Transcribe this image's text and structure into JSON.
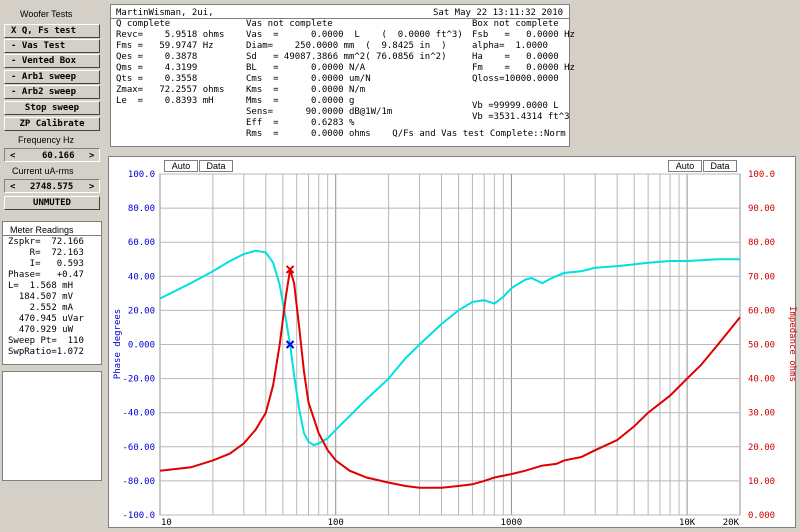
{
  "sidebar": {
    "title": "Woofer Tests",
    "buttons": [
      {
        "id": "qfs",
        "label": "X Q, Fs test"
      },
      {
        "id": "vas",
        "label": "- Vas Test"
      },
      {
        "id": "vented",
        "label": "- Vented Box"
      },
      {
        "id": "arb1",
        "label": "- Arb1 sweep"
      },
      {
        "id": "arb2",
        "label": "- Arb2 sweep"
      },
      {
        "id": "stop",
        "label": "Stop sweep"
      },
      {
        "id": "zp",
        "label": "ZP Calibrate"
      }
    ],
    "freq_label": "Frequency Hz",
    "freq_left": "<",
    "freq_value": "60.166",
    "freq_right": ">",
    "current_label": "Current uA-rms",
    "current_left": "<",
    "current_value": "2748.575",
    "current_right": ">",
    "mute_label": "UNMUTED"
  },
  "meter": {
    "title": "Meter Readings",
    "lines": [
      "Zspkr=  72.166",
      "    R=  72.163",
      "    I=   0.593",
      "Phase=   +0.47",
      "L=  1.568 mH",
      "  184.507 mV",
      "    2.552 mA",
      "  470.945 uVar",
      "  470.929 uW",
      "Sweep Pt=  110",
      "SwpRatio=1.072"
    ]
  },
  "info": {
    "col1": [
      "Q complete",
      "Revc=    5.9518 ohms",
      "Fms =   59.9747 Hz",
      "Qes =    0.3878",
      "Qms =    4.3199",
      "Qts =    0.3558",
      "Zmax=   72.2557 ohms",
      "Le  =    0.8393 mH"
    ],
    "col2_header": "MartinWisman, 2ui,",
    "col2": [
      "Vas not complete",
      "Vas  =      0.0000  L    (  0.0000 ft^3)",
      "Diam=    250.0000 mm  (  9.8425 in  )",
      "Sd   = 49087.3866 mm^2( 76.0856 in^2)",
      "BL   =      0.0000 N/A",
      "Cms  =      0.0000 um/N",
      "Kms  =      0.0000 N/m",
      "Mms  =      0.0000 g",
      "Sens=      90.0000 dB@1W/1m",
      "Eff  =      0.6283 %",
      "Rms  =      0.0000 ohms    Q/Fs and Vas test Complete::Norm"
    ],
    "timestamp": "Sat May 22 13:11:32 2010",
    "col3": [
      "Box not complete",
      "Fsb   =   0.0000 Hz",
      "alpha=  1.0000",
      "Ha    =   0.0000",
      "Fm    =   0.0000 Hz",
      "Qloss=10000.0000"
    ],
    "col3_b": [
      "Vb =99999.0000 L",
      "Vb =3531.4314 ft^3"
    ]
  },
  "chart_controls": {
    "left_auto": "Auto",
    "left_data": "Data",
    "right_auto": "Auto",
    "right_data": "Data"
  },
  "chart_data": {
    "type": "line",
    "xscale": "log",
    "xlim": [
      10,
      20000
    ],
    "x_ticks": [
      "10",
      "100",
      "1000",
      "10K",
      "20K"
    ],
    "ylabel_left": "Phase degrees",
    "ylabel_right": "Impedance ohms",
    "ylim_left": [
      -100,
      100
    ],
    "ylim_right": [
      0,
      100
    ],
    "y_ticks_left": [
      "100.0",
      "80.00",
      "60.00",
      "40.00",
      "20.00",
      "0.000",
      "-20.00",
      "-40.00",
      "-60.00",
      "-80.00",
      "-100.0"
    ],
    "y_ticks_right": [
      "100.0",
      "90.00",
      "80.00",
      "70.00",
      "60.00",
      "50.00",
      "40.00",
      "30.00",
      "20.00",
      "10.00",
      "0.000"
    ],
    "grid": true,
    "series": [
      {
        "axis": "left",
        "color": "#00e0e0",
        "points": [
          [
            10,
            27
          ],
          [
            12,
            31
          ],
          [
            15,
            36
          ],
          [
            20,
            43
          ],
          [
            25,
            49
          ],
          [
            30,
            53
          ],
          [
            35,
            55
          ],
          [
            40,
            54
          ],
          [
            44,
            48
          ],
          [
            48,
            35
          ],
          [
            52,
            15
          ],
          [
            55,
            0
          ],
          [
            58,
            -18
          ],
          [
            62,
            -38
          ],
          [
            66,
            -52
          ],
          [
            70,
            -57
          ],
          [
            75,
            -59
          ],
          [
            80,
            -58
          ],
          [
            90,
            -55
          ],
          [
            100,
            -50
          ],
          [
            120,
            -42
          ],
          [
            150,
            -32
          ],
          [
            200,
            -20
          ],
          [
            250,
            -8
          ],
          [
            300,
            0
          ],
          [
            400,
            12
          ],
          [
            500,
            20
          ],
          [
            600,
            25
          ],
          [
            700,
            26
          ],
          [
            800,
            24
          ],
          [
            900,
            28
          ],
          [
            1000,
            33
          ],
          [
            1200,
            38
          ],
          [
            1300,
            39
          ],
          [
            1500,
            36
          ],
          [
            1700,
            39
          ],
          [
            2000,
            42
          ],
          [
            2500,
            43
          ],
          [
            3000,
            45
          ],
          [
            4000,
            46
          ],
          [
            5000,
            47
          ],
          [
            6000,
            48
          ],
          [
            8000,
            49
          ],
          [
            10000,
            49
          ],
          [
            15000,
            50
          ],
          [
            20000,
            50
          ]
        ]
      },
      {
        "axis": "right",
        "color": "#e00000",
        "points": [
          [
            10,
            13
          ],
          [
            15,
            14
          ],
          [
            20,
            16
          ],
          [
            25,
            18
          ],
          [
            30,
            21
          ],
          [
            35,
            25
          ],
          [
            40,
            30
          ],
          [
            44,
            38
          ],
          [
            48,
            50
          ],
          [
            52,
            64
          ],
          [
            55,
            72
          ],
          [
            58,
            68
          ],
          [
            62,
            55
          ],
          [
            66,
            42
          ],
          [
            70,
            33
          ],
          [
            80,
            24
          ],
          [
            90,
            19
          ],
          [
            100,
            16
          ],
          [
            120,
            13
          ],
          [
            150,
            11
          ],
          [
            200,
            9.5
          ],
          [
            250,
            8.5
          ],
          [
            300,
            8
          ],
          [
            400,
            8
          ],
          [
            500,
            8.5
          ],
          [
            600,
            9
          ],
          [
            700,
            10
          ],
          [
            800,
            11
          ],
          [
            1000,
            12
          ],
          [
            1200,
            13
          ],
          [
            1500,
            14.5
          ],
          [
            1800,
            15
          ],
          [
            2000,
            16
          ],
          [
            2500,
            17
          ],
          [
            3000,
            19
          ],
          [
            4000,
            22
          ],
          [
            5000,
            26
          ],
          [
            6000,
            30
          ],
          [
            8000,
            35
          ],
          [
            10000,
            40
          ],
          [
            12000,
            44
          ],
          [
            15000,
            50
          ],
          [
            20000,
            58
          ]
        ]
      }
    ],
    "markers": [
      {
        "symbol": "x",
        "color": "#e00000",
        "x": 55,
        "y": 72,
        "axis": "right"
      },
      {
        "symbol": "x",
        "color": "#0000e0",
        "x": 55,
        "y": 0,
        "axis": "left"
      }
    ]
  }
}
